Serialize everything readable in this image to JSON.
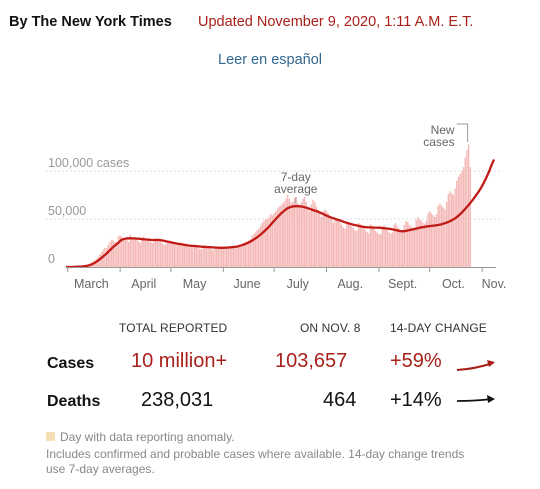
{
  "header": {
    "byline": "By The New York Times",
    "updated": "Updated November 9, 2020, 1:11 A.M. E.T.",
    "language_link": "Leer en español"
  },
  "chart_data": {
    "type": "bar",
    "title": "",
    "xlabel": "",
    "ylabel": "",
    "ylim": [
      0,
      125000
    ],
    "y_ticks": [
      {
        "value": 0,
        "label": "0"
      },
      {
        "value": 50000,
        "label": "50,000"
      },
      {
        "value": 100000,
        "label": "100,000 cases"
      }
    ],
    "x_months": [
      "March",
      "April",
      "May",
      "June",
      "July",
      "Aug.",
      "Sept.",
      "Oct.",
      "Nov."
    ],
    "x_range": [
      "2020-02-29",
      "2020-11-08"
    ],
    "annotations": {
      "average": "7-day\naverage",
      "new_cases": "New\ncases"
    },
    "series": [
      {
        "name": "New cases",
        "kind": "bars",
        "color": "#f4b9b7",
        "start": "2020-02-29",
        "values": [
          0,
          0,
          100,
          100,
          100,
          200,
          300,
          400,
          500,
          700,
          1000,
          1500,
          2000,
          2800,
          3500,
          4500,
          5800,
          7000,
          8500,
          10500,
          13000,
          15500,
          18000,
          20000,
          19500,
          23000,
          26000,
          28500,
          27500,
          26000,
          25500,
          32000,
          33000,
          31500,
          30000,
          29000,
          28500,
          26000,
          33500,
          30500,
          30500,
          30000,
          28500,
          26500,
          25000,
          29500,
          32000,
          29500,
          28000,
          27500,
          26000,
          25000,
          26000,
          30000,
          29500,
          28500,
          26500,
          24500,
          23500,
          23500,
          27000,
          26500,
          25500,
          25000,
          24500,
          23500,
          22500,
          24500,
          25500,
          24500,
          23500,
          23000,
          21500,
          20500,
          23500,
          22500,
          22000,
          21500,
          20000,
          19000,
          18500,
          21500,
          23000,
          22000,
          20500,
          19000,
          18500,
          17500,
          20000,
          21500,
          21000,
          20500,
          19500,
          18500,
          19000,
          21000,
          20500,
          20500,
          21000,
          20000,
          19500,
          20000,
          22500,
          23000,
          24000,
          25000,
          26000,
          26500,
          27500,
          29000,
          32500,
          34500,
          36000,
          38500,
          40000,
          42500,
          46000,
          48000,
          50000,
          49500,
          52000,
          55000,
          54000,
          56000,
          58000,
          61000,
          63000,
          64000,
          66000,
          68000,
          71000,
          75000,
          71000,
          67000,
          68000,
          72000,
          73000,
          67000,
          64000,
          67000,
          71000,
          73000,
          68000,
          63000,
          58000,
          65000,
          70000,
          67500,
          63000,
          60000,
          57000,
          52000,
          58000,
          60000,
          58500,
          56000,
          53000,
          50000,
          46000,
          50000,
          51000,
          49000,
          46500,
          44000,
          41000,
          40000,
          46000,
          47000,
          45000,
          42500,
          40500,
          38000,
          38000,
          46000,
          44500,
          43000,
          40500,
          38500,
          36500,
          35000,
          44500,
          43000,
          40500,
          38000,
          36000,
          34500,
          34000,
          40000,
          43500,
          40500,
          38000,
          36000,
          35000,
          36000,
          44000,
          46000,
          42000,
          40000,
          38000,
          37000,
          44000,
          48000,
          47000,
          44000,
          42500,
          41000,
          40000,
          49000,
          52000,
          50000,
          48000,
          46000,
          45000,
          48000,
          56000,
          58000,
          56000,
          54000,
          52000,
          55000,
          64000,
          66000,
          64000,
          62000,
          60000,
          68000,
          76000,
          79000,
          77000,
          75000,
          82000,
          90000,
          94000,
          97000,
          100000,
          104000,
          114000,
          122000,
          128000,
          104000
        ]
      },
      {
        "name": "7-day average",
        "kind": "line",
        "color": "#c11b17",
        "start": "2020-02-29",
        "values": [
          0,
          0,
          0,
          0,
          100,
          100,
          200,
          300,
          300,
          400,
          600,
          800,
          1100,
          1400,
          2000,
          2600,
          3400,
          4400,
          5500,
          6700,
          8000,
          9500,
          11000,
          12500,
          14000,
          15800,
          17500,
          19300,
          21000,
          22500,
          24000,
          25300,
          27000,
          28400,
          29000,
          29500,
          29800,
          29900,
          29900,
          29900,
          29800,
          29700,
          29600,
          29500,
          29300,
          29000,
          28900,
          28800,
          28600,
          28400,
          28200,
          28100,
          28000,
          28100,
          28200,
          28100,
          27900,
          27600,
          27300,
          26900,
          26500,
          26100,
          25700,
          25300,
          25000,
          24600,
          24300,
          24000,
          23700,
          23400,
          23100,
          22800,
          22500,
          22300,
          22100,
          22000,
          21900,
          21800,
          21600,
          21400,
          21200,
          21000,
          20900,
          20800,
          20700,
          20600,
          20500,
          20400,
          20300,
          20200,
          20100,
          20000,
          20000,
          20000,
          20100,
          20200,
          20300,
          20400,
          20600,
          20800,
          21000,
          21300,
          21700,
          22200,
          22700,
          23300,
          24000,
          24800,
          25600,
          26500,
          27500,
          28600,
          29700,
          31000,
          32400,
          33800,
          35300,
          36800,
          38500,
          40200,
          42000,
          44000,
          46000,
          48000,
          50000,
          52000,
          53800,
          55500,
          57000,
          58500,
          60000,
          61200,
          62000,
          62600,
          63000,
          63200,
          63300,
          63300,
          63200,
          63000,
          62700,
          62300,
          61800,
          61200,
          60600,
          60000,
          59400,
          58800,
          58200,
          57500,
          56800,
          56000,
          55200,
          54400,
          53600,
          52800,
          52000,
          51400,
          50800,
          50200,
          49600,
          49000,
          48400,
          47800,
          47200,
          46600,
          46000,
          45500,
          45000,
          44500,
          44000,
          43600,
          43200,
          42800,
          42400,
          42100,
          41800,
          41600,
          41400,
          41300,
          41200,
          41100,
          41000,
          41000,
          41000,
          40900,
          40800,
          40600,
          40400,
          40200,
          40000,
          39800,
          39600,
          39200,
          38800,
          38400,
          38000,
          37600,
          37300,
          37200,
          37300,
          37600,
          38000,
          38400,
          38800,
          39200,
          39600,
          40000,
          40400,
          40800,
          41200,
          41500,
          41800,
          42100,
          42400,
          42600,
          42800,
          43000,
          43200,
          43500,
          43800,
          44200,
          44600,
          45100,
          45600,
          46200,
          46900,
          47700,
          48600,
          49600,
          50700,
          52000,
          53500,
          55100,
          56800,
          58600,
          60500,
          62500,
          64600,
          66800,
          69000,
          71300,
          73700,
          76200,
          78800,
          81600,
          84600,
          87800,
          91300,
          95000,
          99000,
          103500,
          108000,
          112000
        ]
      }
    ]
  },
  "table": {
    "col_total": "TOTAL REPORTED",
    "col_day": "ON NOV. 8",
    "col_change": "14-DAY CHANGE",
    "rows": [
      {
        "label": "Cases",
        "total": "10 million+",
        "day": "103,657",
        "change": "+59%",
        "trend_color": "#a8201a"
      },
      {
        "label": "Deaths",
        "total": "238,031",
        "day": "464",
        "change": "+14%",
        "trend_color": "#121212"
      }
    ]
  },
  "footnote": {
    "anomaly": "Day with data reporting anomaly.",
    "note": "Includes confirmed and probable cases where available. 14-day change trends use 7-day averages."
  }
}
